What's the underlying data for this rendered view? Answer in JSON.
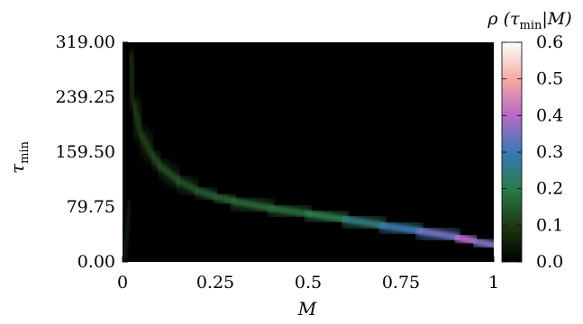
{
  "chart_data": {
    "type": "heatmap",
    "title": "",
    "xlabel": "M",
    "ylabel": {
      "main": "τ",
      "sub": "min"
    },
    "xlim": [
      0,
      1
    ],
    "ylim": [
      0.0,
      319.0
    ],
    "x_ticks": [
      "0",
      "0.25",
      "0.5",
      "0.75",
      "1"
    ],
    "x_tick_values": [
      0,
      0.25,
      0.5,
      0.75,
      1
    ],
    "y_ticks": [
      "0.00",
      "79.75",
      "159.50",
      "239.25",
      "319.00"
    ],
    "y_tick_values": [
      0.0,
      79.75,
      159.5,
      239.25,
      319.0
    ],
    "colorbar": {
      "label": {
        "prefix": "ρ (τ",
        "sub": "min",
        "suffix": "|M)"
      },
      "ticks": [
        "0.0",
        "0.1",
        "0.2",
        "0.3",
        "0.4",
        "0.5",
        "0.6"
      ],
      "tick_values": [
        0.0,
        0.1,
        0.2,
        0.3,
        0.4,
        0.5,
        0.6
      ],
      "range": [
        0.0,
        0.6
      ],
      "colormap": [
        "#000000",
        "#1f3a14",
        "#2b7a4a",
        "#3a78b8",
        "#b86ac6",
        "#f5a8a0",
        "#ffffff"
      ]
    },
    "ridge": {
      "description_points_M": [
        0.02,
        0.03,
        0.05,
        0.08,
        0.1,
        0.15,
        0.2,
        0.25,
        0.3,
        0.4,
        0.5,
        0.6,
        0.7,
        0.8,
        0.9,
        0.95,
        1.0
      ],
      "tau_min": [
        300,
        230,
        185,
        155,
        140,
        118,
        104,
        95,
        88,
        78,
        70,
        62,
        53,
        45,
        36,
        30,
        24
      ],
      "peak_density": [
        0.05,
        0.08,
        0.1,
        0.11,
        0.12,
        0.13,
        0.14,
        0.15,
        0.16,
        0.17,
        0.18,
        0.22,
        0.27,
        0.32,
        0.38,
        0.42,
        0.3
      ]
    }
  }
}
